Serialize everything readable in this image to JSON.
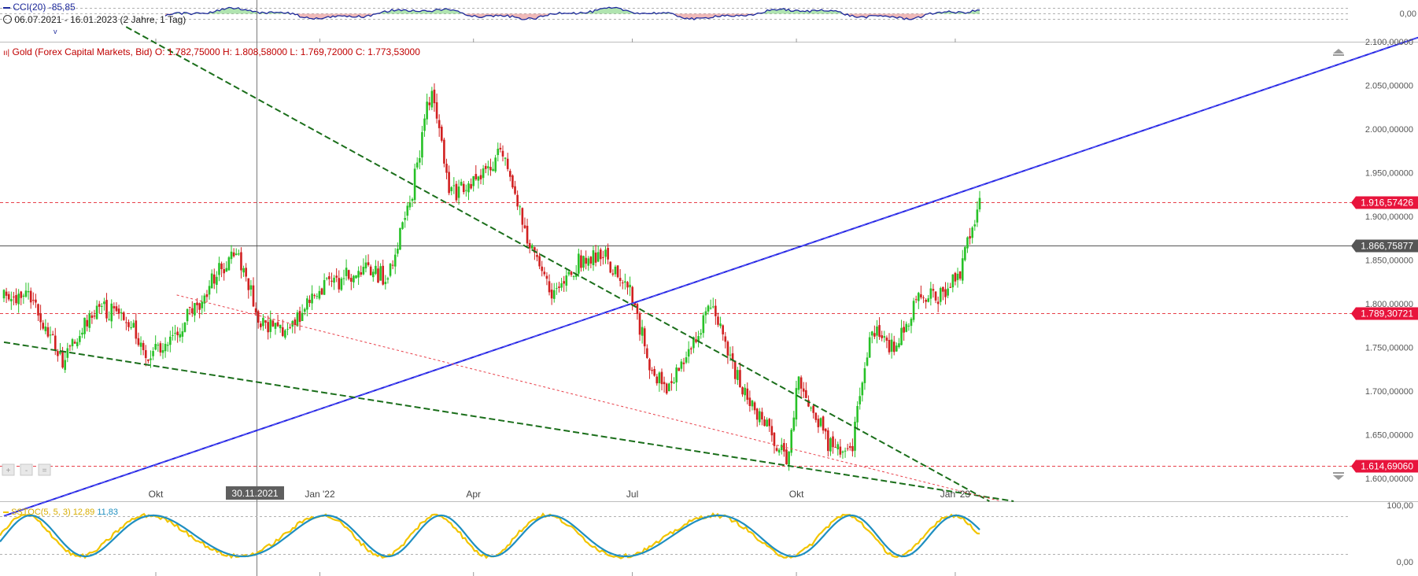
{
  "cci_panel": {
    "indicator_label": "CCI(20)",
    "indicator_value": "-85,85",
    "period": "06.07.2021 - 16.01.2023",
    "range_info": "(2 Jahre, 1 Tag)",
    "axis_value": "0,00",
    "colors": {
      "line": "#1e2a9c",
      "pos_fill": "#7bd27b",
      "neg_fill": "#e48a8a"
    }
  },
  "price_panel": {
    "instrument": "Gold (Forex Capital Markets, Bid)",
    "ohlc": {
      "open": "O: 1.782,75000",
      "high": "H: 1.808,58000",
      "low": "L: 1.769,72000",
      "close": "C: 1.773,53000"
    },
    "axis_ticks": [
      "2.100,00000",
      "2.050,00000",
      "2.000,00000",
      "1.950,00000",
      "1.900,00000",
      "1.850,00000",
      "1.800,00000",
      "1.750,00000",
      "1.700,00000",
      "1.650,00000",
      "1.600,00000"
    ],
    "level_tags": [
      {
        "text": "1.916,57426",
        "kind": "red"
      },
      {
        "text": "1.866,75877",
        "kind": "dark"
      },
      {
        "text": "1.789,30721",
        "kind": "red"
      },
      {
        "text": "1.614,69060",
        "kind": "red"
      }
    ],
    "crosshair_date": "30.11.2021",
    "colors": {
      "up": "#27c127",
      "down": "#d12020",
      "blue_trend": "#2222dd",
      "green_trend": "#1a6e1a",
      "red_level": "#e8404a"
    }
  },
  "x_axis": {
    "labels": [
      "Okt",
      "Jan '22",
      "Apr",
      "Jul",
      "Okt",
      "Jan '23"
    ]
  },
  "stoch_panel": {
    "indicator_label": "SSTOC(5, 5, 3)",
    "k_value": "12,89",
    "d_value": "11,83",
    "axis_top": "100,00",
    "axis_bottom": "0,00",
    "colors": {
      "k": "#f2c500",
      "d": "#1f8fc0"
    }
  },
  "chart_data": {
    "type": "candlestick",
    "title": "Gold (Forex Capital Markets, Bid)",
    "ylim": [
      1580,
      2110
    ],
    "x_range": [
      "06.07.2021",
      "16.01.2023"
    ],
    "grid": false,
    "close_path": [
      {
        "date": "2021-07-06",
        "value": 1805
      },
      {
        "date": "2021-07-20",
        "value": 1815
      },
      {
        "date": "2021-08-09",
        "value": 1730
      },
      {
        "date": "2021-08-25",
        "value": 1790
      },
      {
        "date": "2021-09-10",
        "value": 1795
      },
      {
        "date": "2021-09-28",
        "value": 1740
      },
      {
        "date": "2021-10-20",
        "value": 1785
      },
      {
        "date": "2021-11-16",
        "value": 1865
      },
      {
        "date": "2021-11-30",
        "value": 1780
      },
      {
        "date": "2021-12-15",
        "value": 1770
      },
      {
        "date": "2022-01-04",
        "value": 1815
      },
      {
        "date": "2022-01-25",
        "value": 1840
      },
      {
        "date": "2022-02-10",
        "value": 1830
      },
      {
        "date": "2022-02-24",
        "value": 1920
      },
      {
        "date": "2022-03-08",
        "value": 2050
      },
      {
        "date": "2022-03-18",
        "value": 1925
      },
      {
        "date": "2022-04-01",
        "value": 1935
      },
      {
        "date": "2022-04-18",
        "value": 1980
      },
      {
        "date": "2022-05-03",
        "value": 1865
      },
      {
        "date": "2022-05-16",
        "value": 1810
      },
      {
        "date": "2022-06-01",
        "value": 1850
      },
      {
        "date": "2022-06-13",
        "value": 1860
      },
      {
        "date": "2022-06-30",
        "value": 1810
      },
      {
        "date": "2022-07-12",
        "value": 1725
      },
      {
        "date": "2022-07-21",
        "value": 1700
      },
      {
        "date": "2022-08-15",
        "value": 1800
      },
      {
        "date": "2022-08-31",
        "value": 1710
      },
      {
        "date": "2022-09-15",
        "value": 1660
      },
      {
        "date": "2022-09-28",
        "value": 1620
      },
      {
        "date": "2022-10-04",
        "value": 1720
      },
      {
        "date": "2022-10-21",
        "value": 1640
      },
      {
        "date": "2022-11-03",
        "value": 1628
      },
      {
        "date": "2022-11-15",
        "value": 1770
      },
      {
        "date": "2022-11-28",
        "value": 1750
      },
      {
        "date": "2022-12-13",
        "value": 1810
      },
      {
        "date": "2022-12-28",
        "value": 1810
      },
      {
        "date": "2023-01-05",
        "value": 1840
      },
      {
        "date": "2023-01-16",
        "value": 1916
      }
    ],
    "horizontal_levels": [
      1916.57426,
      1866.75877,
      1789.30721,
      1614.6906
    ],
    "trend_lines": [
      {
        "color": "blue",
        "style": "dashed-solid",
        "from": {
          "date": "2021-07-06",
          "value": 1557
        },
        "to": {
          "date": "2023-01-16",
          "value": 1935
        }
      },
      {
        "color": "green",
        "style": "dashed",
        "from": {
          "date": "2021-09-14",
          "value": 2117
        },
        "to": {
          "date": "2023-01-16",
          "value": 1580
        }
      },
      {
        "color": "green",
        "style": "dashed",
        "from": {
          "date": "2021-07-06",
          "value": 1756
        },
        "to": {
          "date": "2023-01-16",
          "value": 1580
        }
      },
      {
        "color": "red",
        "style": "dotted",
        "from": {
          "date": "2021-10-13",
          "value": 1810
        },
        "to": {
          "date": "2023-01-16",
          "value": 1580
        }
      }
    ]
  }
}
